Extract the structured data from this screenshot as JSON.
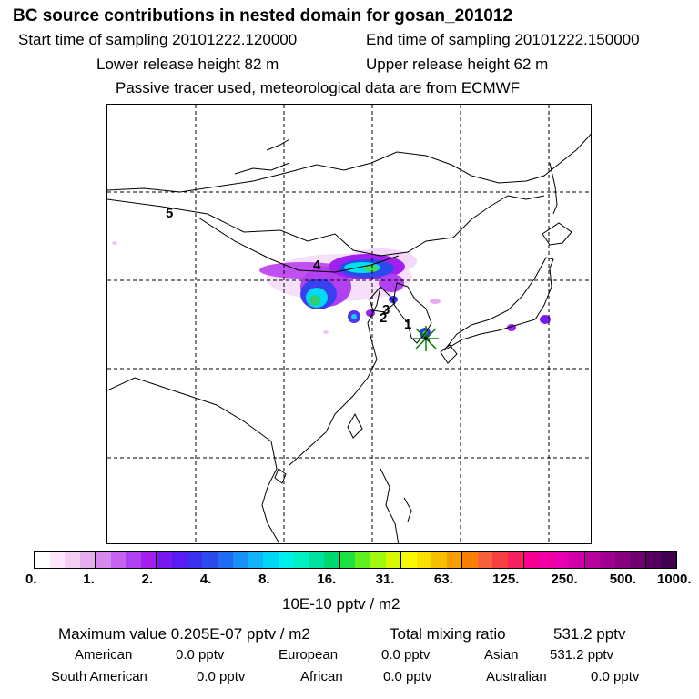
{
  "title": "BC  source contributions in nested domain for gosan_201012",
  "sampling": {
    "start": "Start time of sampling 20101222.120000",
    "end": "End time of sampling 20101222.150000"
  },
  "release": {
    "lower": "Lower release height   82 m",
    "upper": "Upper release height   62 m"
  },
  "tracer_note": "Passive tracer used, meteorological data are from ECMWF",
  "map": {
    "region_labels": [
      "5",
      "4",
      "3",
      "2",
      "1"
    ],
    "receptor": "gosan",
    "colors": {
      "coast": "#000000",
      "grid": "#000000",
      "plume_low": "#f0c8f8",
      "plume_mid": "#a020f0",
      "plume_blue": "#3030e8",
      "plume_cyan": "#00e0e0",
      "plume_green": "#30d070",
      "receptor_star": "#008000"
    }
  },
  "colorbar": {
    "colors": [
      "#ffffff",
      "#fbe6fb",
      "#f3cdf3",
      "#e6aef0",
      "#d68aee",
      "#c464f0",
      "#b040f0",
      "#a020f0",
      "#7a18f0",
      "#5a1cf0",
      "#3a30ee",
      "#2a4aee",
      "#1e6cf2",
      "#1890f6",
      "#10b4f8",
      "#00d8f8",
      "#00f0e8",
      "#00f0c0",
      "#00e0a0",
      "#00d870",
      "#20e040",
      "#60f020",
      "#a0f810",
      "#d8f800",
      "#f8f800",
      "#f8e000",
      "#f8c000",
      "#f8a000",
      "#f88000",
      "#f86040",
      "#f84040",
      "#f82060",
      "#f80090",
      "#f000a0",
      "#e800b0",
      "#d000a8",
      "#b8009c",
      "#a00090",
      "#880080",
      "#700070",
      "#560060",
      "#400050"
    ],
    "tick_labels": [
      "0.",
      "1.",
      "2.",
      "4.",
      "8.",
      "16.",
      "31.",
      "63.",
      "125.",
      "250.",
      "500.",
      "1000."
    ],
    "unit": "10E-10 pptv / m2"
  },
  "stats": {
    "max_label": "Maximum value  0.205E-07 pptv / m2",
    "total_label": "Total mixing ratio",
    "total_value": "531.2 pptv",
    "contributions": [
      {
        "region": "American",
        "value": "0.0 pptv"
      },
      {
        "region": "European",
        "value": "0.0 pptv"
      },
      {
        "region": "Asian",
        "value": "531.2 pptv"
      },
      {
        "region": "South American",
        "value": "0.0 pptv"
      },
      {
        "region": "African",
        "value": "0.0 pptv"
      },
      {
        "region": "Australian",
        "value": "0.0 pptv"
      }
    ]
  }
}
